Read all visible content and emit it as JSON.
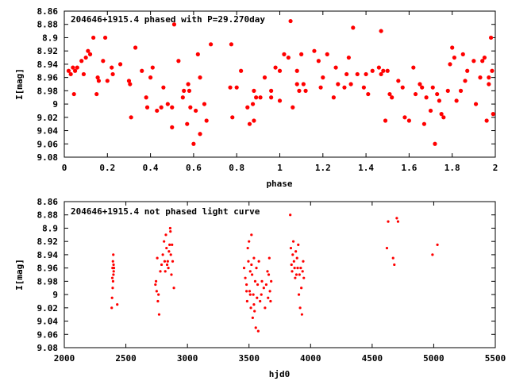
{
  "chart_data": [
    {
      "type": "scatter",
      "title": "204646+1915.4 phased with P=29.270day",
      "xlabel": "phase",
      "ylabel": "I[mag]",
      "xlim": [
        0,
        2
      ],
      "ylim": [
        8.86,
        9.08
      ],
      "y_inverted": true,
      "grid": false,
      "marker_color": "#ff0000",
      "xticks": [
        "0",
        "0.2",
        "0.4",
        "0.6",
        "0.8",
        "1",
        "1.2",
        "1.4",
        "1.6",
        "1.8",
        "2"
      ],
      "yticks": [
        "8.86",
        "8.88",
        "8.9",
        "8.92",
        "8.94",
        "8.96",
        "8.98",
        "9",
        "9.02",
        "9.04",
        "9.06",
        "9.08"
      ],
      "points": [
        [
          0.02,
          8.95
        ],
        [
          0.03,
          8.955
        ],
        [
          0.04,
          8.945
        ],
        [
          0.05,
          8.95
        ],
        [
          0.045,
          8.985
        ],
        [
          0.06,
          8.945
        ],
        [
          0.08,
          8.935
        ],
        [
          0.09,
          8.955
        ],
        [
          0.1,
          8.93
        ],
        [
          0.11,
          8.92
        ],
        [
          0.12,
          8.925
        ],
        [
          0.135,
          8.9
        ],
        [
          0.15,
          8.985
        ],
        [
          0.155,
          8.96
        ],
        [
          0.16,
          8.965
        ],
        [
          0.18,
          8.935
        ],
        [
          0.19,
          8.9
        ],
        [
          0.2,
          8.965
        ],
        [
          0.22,
          8.945
        ],
        [
          0.225,
          8.955
        ],
        [
          0.26,
          8.94
        ],
        [
          0.3,
          8.965
        ],
        [
          0.305,
          8.97
        ],
        [
          0.31,
          9.02
        ],
        [
          0.33,
          8.915
        ],
        [
          0.36,
          8.95
        ],
        [
          0.38,
          8.99
        ],
        [
          0.385,
          9.005
        ],
        [
          0.4,
          8.96
        ],
        [
          0.41,
          8.945
        ],
        [
          0.43,
          9.01
        ],
        [
          0.45,
          9.005
        ],
        [
          0.46,
          8.975
        ],
        [
          0.48,
          9.0
        ],
        [
          0.5,
          9.035
        ],
        [
          0.5,
          9.005
        ],
        [
          0.51,
          8.88
        ],
        [
          0.53,
          8.935
        ],
        [
          0.55,
          8.99
        ],
        [
          0.555,
          8.98
        ],
        [
          0.57,
          9.03
        ],
        [
          0.575,
          8.97
        ],
        [
          0.58,
          8.98
        ],
        [
          0.585,
          9.005
        ],
        [
          0.6,
          9.06
        ],
        [
          0.61,
          9.01
        ],
        [
          0.62,
          8.925
        ],
        [
          0.63,
          9.045
        ],
        [
          0.65,
          9.0
        ],
        [
          0.66,
          9.025
        ],
        [
          0.68,
          8.91
        ],
        [
          0.77,
          8.975
        ],
        [
          0.775,
          8.91
        ],
        [
          0.78,
          9.02
        ],
        [
          0.8,
          8.975
        ],
        [
          0.82,
          8.95
        ],
        [
          0.85,
          9.005
        ],
        [
          0.86,
          9.03
        ],
        [
          0.875,
          9.0
        ],
        [
          0.88,
          9.025
        ],
        [
          0.88,
          8.98
        ],
        [
          0.89,
          8.99
        ],
        [
          0.91,
          8.99
        ],
        [
          0.93,
          8.96
        ],
        [
          0.96,
          8.99
        ],
        [
          0.96,
          8.98
        ],
        [
          0.98,
          8.945
        ],
        [
          1.0,
          8.95
        ],
        [
          1.0,
          8.995
        ],
        [
          1.02,
          8.925
        ],
        [
          1.04,
          8.93
        ],
        [
          1.05,
          8.875
        ],
        [
          1.06,
          9.005
        ],
        [
          1.08,
          8.95
        ],
        [
          1.08,
          8.97
        ],
        [
          1.09,
          8.98
        ],
        [
          1.1,
          8.925
        ],
        [
          1.11,
          8.97
        ],
        [
          1.12,
          8.98
        ],
        [
          1.16,
          8.92
        ],
        [
          1.18,
          8.935
        ],
        [
          1.19,
          8.975
        ],
        [
          1.2,
          8.96
        ],
        [
          1.22,
          8.925
        ],
        [
          1.25,
          8.99
        ],
        [
          1.26,
          8.945
        ],
        [
          1.27,
          8.97
        ],
        [
          1.3,
          8.975
        ],
        [
          1.31,
          8.955
        ],
        [
          1.32,
          8.93
        ],
        [
          1.33,
          8.97
        ],
        [
          1.34,
          8.885
        ],
        [
          1.36,
          8.955
        ],
        [
          1.39,
          8.975
        ],
        [
          1.4,
          8.955
        ],
        [
          1.41,
          8.985
        ],
        [
          1.43,
          8.95
        ],
        [
          1.46,
          8.945
        ],
        [
          1.47,
          8.89
        ],
        [
          1.48,
          8.95
        ],
        [
          1.49,
          9.025
        ],
        [
          1.5,
          8.95
        ],
        [
          1.51,
          8.985
        ],
        [
          1.52,
          8.99
        ],
        [
          1.55,
          8.965
        ],
        [
          1.57,
          8.975
        ],
        [
          1.58,
          9.02
        ],
        [
          1.6,
          9.025
        ],
        [
          1.62,
          8.945
        ],
        [
          1.63,
          8.985
        ],
        [
          1.65,
          8.97
        ],
        [
          1.66,
          8.975
        ],
        [
          1.67,
          9.03
        ],
        [
          1.68,
          8.99
        ],
        [
          1.7,
          9.01
        ],
        [
          1.71,
          8.975
        ],
        [
          1.72,
          9.06
        ],
        [
          1.73,
          8.985
        ],
        [
          1.74,
          8.995
        ],
        [
          1.75,
          9.015
        ],
        [
          1.76,
          9.02
        ],
        [
          1.78,
          8.98
        ],
        [
          1.79,
          8.94
        ],
        [
          1.8,
          8.915
        ],
        [
          1.81,
          8.93
        ],
        [
          1.82,
          8.995
        ],
        [
          1.84,
          8.98
        ],
        [
          1.85,
          8.925
        ],
        [
          1.86,
          8.965
        ],
        [
          1.87,
          8.95
        ],
        [
          1.9,
          8.935
        ],
        [
          1.91,
          9.0
        ],
        [
          1.93,
          8.96
        ],
        [
          1.94,
          8.935
        ],
        [
          1.95,
          8.93
        ],
        [
          1.96,
          9.025
        ],
        [
          1.97,
          8.97
        ],
        [
          1.98,
          8.9
        ],
        [
          1.985,
          8.95
        ],
        [
          1.99,
          9.015
        ],
        [
          1.97,
          8.96
        ],
        [
          0.63,
          8.96
        ],
        [
          1.47,
          8.955
        ]
      ]
    },
    {
      "type": "scatter",
      "title": "204646+1915.4 not phased light curve",
      "xlabel": "hjd0",
      "ylabel": "I[mag]",
      "xlim": [
        2000,
        5500
      ],
      "ylim": [
        8.86,
        9.08
      ],
      "y_inverted": true,
      "grid": false,
      "marker_color": "#ff0000",
      "xticks": [
        "2000",
        "2500",
        "3000",
        "3500",
        "4000",
        "4500",
        "5000",
        "5500"
      ],
      "yticks": [
        "8.86",
        "8.88",
        "8.9",
        "8.92",
        "8.94",
        "8.96",
        "8.98",
        "9",
        "9.02",
        "9.04",
        "9.06",
        "9.08"
      ],
      "points": [
        [
          2385,
          9.02
        ],
        [
          2388,
          9.005
        ],
        [
          2390,
          8.975
        ],
        [
          2392,
          8.96
        ],
        [
          2393,
          8.99
        ],
        [
          2395,
          8.95
        ],
        [
          2396,
          8.98
        ],
        [
          2398,
          8.94
        ],
        [
          2399,
          8.97
        ],
        [
          2400,
          8.955
        ],
        [
          2401,
          8.965
        ],
        [
          2403,
          8.96
        ],
        [
          2430,
          9.015
        ],
        [
          2740,
          8.985
        ],
        [
          2745,
          8.98
        ],
        [
          2750,
          8.995
        ],
        [
          2755,
          8.945
        ],
        [
          2760,
          9.01
        ],
        [
          2765,
          9.0
        ],
        [
          2770,
          9.03
        ],
        [
          2780,
          8.965
        ],
        [
          2790,
          8.955
        ],
        [
          2800,
          8.94
        ],
        [
          2810,
          8.92
        ],
        [
          2815,
          8.95
        ],
        [
          2820,
          8.965
        ],
        [
          2825,
          8.91
        ],
        [
          2830,
          8.93
        ],
        [
          2835,
          8.955
        ],
        [
          2840,
          8.95
        ],
        [
          2845,
          8.96
        ],
        [
          2850,
          8.935
        ],
        [
          2855,
          8.925
        ],
        [
          2860,
          8.9
        ],
        [
          2862,
          8.905
        ],
        [
          2865,
          8.94
        ],
        [
          2870,
          8.97
        ],
        [
          2875,
          8.925
        ],
        [
          2880,
          8.95
        ],
        [
          2890,
          8.99
        ],
        [
          3460,
          8.96
        ],
        [
          3470,
          8.975
        ],
        [
          3480,
          8.985
        ],
        [
          3480,
          8.995
        ],
        [
          3485,
          9.01
        ],
        [
          3490,
          8.93
        ],
        [
          3495,
          8.95
        ],
        [
          3500,
          8.92
        ],
        [
          3505,
          8.995
        ],
        [
          3510,
          9.0
        ],
        [
          3510,
          8.965
        ],
        [
          3515,
          9.02
        ],
        [
          3520,
          8.91
        ],
        [
          3520,
          8.955
        ],
        [
          3525,
          8.97
        ],
        [
          3530,
          9.035
        ],
        [
          3535,
          9.0
        ],
        [
          3540,
          9.015
        ],
        [
          3540,
          8.945
        ],
        [
          3545,
          9.025
        ],
        [
          3550,
          8.98
        ],
        [
          3555,
          9.05
        ],
        [
          3560,
          8.96
        ],
        [
          3565,
          9.005
        ],
        [
          3570,
          8.985
        ],
        [
          3575,
          9.055
        ],
        [
          3580,
          8.95
        ],
        [
          3590,
          9.01
        ],
        [
          3600,
          9.0
        ],
        [
          3605,
          8.98
        ],
        [
          3620,
          8.99
        ],
        [
          3630,
          9.02
        ],
        [
          3640,
          8.985
        ],
        [
          3650,
          8.965
        ],
        [
          3655,
          9.005
        ],
        [
          3660,
          8.97
        ],
        [
          3665,
          8.945
        ],
        [
          3670,
          8.995
        ],
        [
          3675,
          9.01
        ],
        [
          3680,
          8.98
        ],
        [
          3835,
          8.88
        ],
        [
          3840,
          8.93
        ],
        [
          3845,
          8.955
        ],
        [
          3850,
          8.965
        ],
        [
          3855,
          8.94
        ],
        [
          3860,
          8.92
        ],
        [
          3865,
          8.95
        ],
        [
          3870,
          8.96
        ],
        [
          3875,
          8.975
        ],
        [
          3880,
          8.935
        ],
        [
          3885,
          8.97
        ],
        [
          3890,
          8.945
        ],
        [
          3895,
          8.96
        ],
        [
          3900,
          8.925
        ],
        [
          3905,
          9.0
        ],
        [
          3910,
          8.97
        ],
        [
          3915,
          9.02
        ],
        [
          3920,
          8.96
        ],
        [
          3925,
          8.99
        ],
        [
          3930,
          9.03
        ],
        [
          3935,
          8.965
        ],
        [
          3940,
          8.95
        ],
        [
          3945,
          8.975
        ],
        [
          4620,
          8.93
        ],
        [
          4630,
          8.89
        ],
        [
          4670,
          8.945
        ],
        [
          4680,
          8.955
        ],
        [
          4700,
          8.885
        ],
        [
          4710,
          8.89
        ],
        [
          4990,
          8.94
        ],
        [
          5030,
          8.925
        ]
      ]
    }
  ]
}
